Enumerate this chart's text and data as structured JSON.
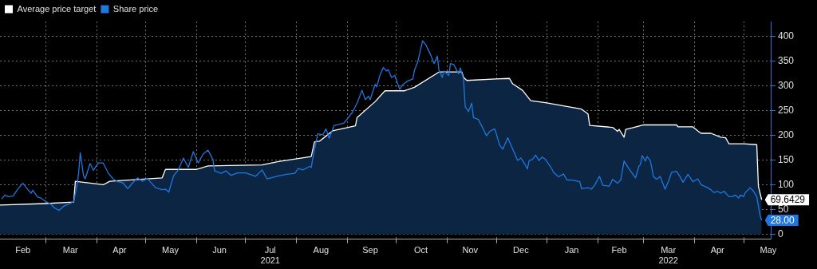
{
  "chart_data": {
    "type": "line",
    "legend": "top left",
    "grid": true,
    "xlim": [
      "2021-02-01",
      "2022-05-18"
    ],
    "xticks": [
      {
        "value": "2021-02-15",
        "label": "Feb"
      },
      {
        "value": "2021-03-01",
        "label": null
      },
      {
        "value": "2021-03-16",
        "label": "Mar"
      },
      {
        "value": "2021-04-01",
        "label": null
      },
      {
        "value": "2021-04-15",
        "label": "Apr"
      },
      {
        "value": "2021-05-01",
        "label": null
      },
      {
        "value": "2021-05-16",
        "label": "May"
      },
      {
        "value": "2021-06-01",
        "label": null
      },
      {
        "value": "2021-06-15",
        "label": "Jun"
      },
      {
        "value": "2021-07-01",
        "label": null
      },
      {
        "value": "2021-07-16",
        "label": "Jul\n2021"
      },
      {
        "value": "2021-08-01",
        "label": null
      },
      {
        "value": "2021-08-16",
        "label": "Aug"
      },
      {
        "value": "2021-09-01",
        "label": null
      },
      {
        "value": "2021-09-15",
        "label": "Sep"
      },
      {
        "value": "2021-10-01",
        "label": null
      },
      {
        "value": "2021-10-16",
        "label": "Oct"
      },
      {
        "value": "2021-11-01",
        "label": null
      },
      {
        "value": "2021-11-15",
        "label": "Nov"
      },
      {
        "value": "2021-12-01",
        "label": null
      },
      {
        "value": "2021-12-16",
        "label": "Dec"
      },
      {
        "value": "2022-01-01",
        "label": null
      },
      {
        "value": "2022-01-16",
        "label": "Jan"
      },
      {
        "value": "2022-02-01",
        "label": null
      },
      {
        "value": "2022-02-14",
        "label": "Feb"
      },
      {
        "value": "2022-03-01",
        "label": null
      },
      {
        "value": "2022-03-16",
        "label": "Mar\n2022"
      },
      {
        "value": "2022-04-01",
        "label": null
      },
      {
        "value": "2022-04-15",
        "label": "Apr"
      },
      {
        "value": "2022-05-01",
        "label": null
      },
      {
        "value": "2022-05-16",
        "label": "May"
      }
    ],
    "ylim": [
      -10,
      430
    ],
    "yticks": [
      0,
      50,
      100,
      150,
      200,
      250,
      300,
      350,
      400
    ],
    "series": [
      {
        "name": "Average price target",
        "type": "area",
        "color": "#ffffff",
        "x": [
          "2021-02-01",
          "2021-03-01",
          "2021-03-18",
          "2021-03-19",
          "2021-04-05",
          "2021-04-09",
          "2021-05-11",
          "2021-05-13",
          "2021-06-01",
          "2021-06-08",
          "2021-07-11",
          "2021-07-21",
          "2021-08-10",
          "2021-08-12",
          "2021-08-15",
          "2021-08-20",
          "2021-08-23",
          "2021-09-06",
          "2021-09-07",
          "2021-09-18",
          "2021-09-24",
          "2021-10-06",
          "2021-10-12",
          "2021-10-27",
          "2021-11-10",
          "2021-11-11",
          "2021-11-13",
          "2021-12-01",
          "2021-12-09",
          "2021-12-11",
          "2021-12-17",
          "2021-12-22",
          "2021-12-31",
          "2022-01-22",
          "2022-01-26",
          "2022-01-27",
          "2022-02-10",
          "2022-02-13",
          "2022-02-14",
          "2022-02-17",
          "2022-02-18",
          "2022-02-22",
          "2022-03-01",
          "2022-03-21",
          "2022-03-22",
          "2022-03-31",
          "2022-04-03",
          "2022-04-05",
          "2022-04-11",
          "2022-04-17",
          "2022-04-20",
          "2022-04-22",
          "2022-05-01",
          "2022-05-09",
          "2022-05-10",
          "2022-05-12"
        ],
        "values": [
          59,
          62,
          65,
          107,
          100,
          107,
          114,
          131,
          131,
          138,
          140,
          147,
          157,
          187,
          188,
          201,
          209,
          219,
          236,
          268,
          290,
          290,
          297,
          328,
          328,
          317,
          311,
          314,
          315,
          304,
          291,
          270,
          266,
          253,
          243,
          220,
          216,
          208,
          212,
          196,
          212,
          215,
          221,
          221,
          217,
          217,
          209,
          204,
          204,
          196,
          195,
          183,
          183,
          181,
          97,
          69.6429
        ],
        "value_labels": [
          null,
          null,
          null,
          null,
          null,
          null,
          null,
          null,
          null,
          null,
          null,
          null,
          null,
          null,
          null,
          null,
          null,
          null,
          null,
          null,
          null,
          null,
          null,
          null,
          null,
          null,
          null,
          null,
          null,
          null,
          null,
          null,
          null,
          null,
          null,
          null,
          null,
          null,
          null,
          null,
          null,
          null,
          null,
          null,
          null,
          null,
          null,
          null,
          null,
          null,
          null,
          null,
          null,
          null,
          null,
          "69.6429"
        ]
      },
      {
        "name": "Share price",
        "type": "line",
        "color": "#1f78e0",
        "x": [
          "2021-02-02",
          "2021-02-04",
          "2021-02-06",
          "2021-02-09",
          "2021-02-12",
          "2021-02-15",
          "2021-02-18",
          "2021-02-20",
          "2021-02-21",
          "2021-02-24",
          "2021-02-26",
          "2021-03-01",
          "2021-03-04",
          "2021-03-06",
          "2021-03-09",
          "2021-03-12",
          "2021-03-15",
          "2021-03-18",
          "2021-03-20",
          "2021-03-21",
          "2021-03-22",
          "2021-03-24",
          "2021-03-25",
          "2021-03-28",
          "2021-03-30",
          "2021-04-02",
          "2021-04-05",
          "2021-04-08",
          "2021-04-11",
          "2021-04-14",
          "2021-04-17",
          "2021-04-20",
          "2021-04-23",
          "2021-04-26",
          "2021-04-29",
          "2021-05-02",
          "2021-05-04",
          "2021-05-07",
          "2021-05-11",
          "2021-05-13",
          "2021-05-15",
          "2021-05-18",
          "2021-05-21",
          "2021-05-24",
          "2021-05-27",
          "2021-05-30",
          "2021-06-02",
          "2021-06-05",
          "2021-06-08",
          "2021-06-11",
          "2021-06-12",
          "2021-06-16",
          "2021-06-19",
          "2021-06-22",
          "2021-06-26",
          "2021-07-01",
          "2021-07-07",
          "2021-07-11",
          "2021-07-14",
          "2021-07-21",
          "2021-07-26",
          "2021-07-31",
          "2021-08-02",
          "2021-08-05",
          "2021-08-09",
          "2021-08-10",
          "2021-08-12",
          "2021-08-14",
          "2021-08-17",
          "2021-08-19",
          "2021-08-21",
          "2021-08-24",
          "2021-08-27",
          "2021-08-30",
          "2021-08-31",
          "2021-09-04",
          "2021-09-07",
          "2021-09-10",
          "2021-09-12",
          "2021-09-14",
          "2021-09-15",
          "2021-09-18",
          "2021-09-19",
          "2021-09-21",
          "2021-09-23",
          "2021-09-25",
          "2021-09-26",
          "2021-09-28",
          "2021-09-30",
          "2021-10-03",
          "2021-10-05",
          "2021-10-08",
          "2021-10-11",
          "2021-10-12",
          "2021-10-14",
          "2021-10-17",
          "2021-10-19",
          "2021-10-22",
          "2021-10-24",
          "2021-10-26",
          "2021-10-27",
          "2021-10-29",
          "2021-10-30",
          "2021-11-02",
          "2021-11-03",
          "2021-11-05",
          "2021-11-08",
          "2021-11-09",
          "2021-11-11",
          "2021-11-12",
          "2021-11-14",
          "2021-11-16",
          "2021-11-17",
          "2021-11-20",
          "2021-11-23",
          "2021-11-25",
          "2021-11-27",
          "2021-11-30",
          "2021-12-01",
          "2021-12-03",
          "2021-12-05",
          "2021-12-08",
          "2021-12-11",
          "2021-12-14",
          "2021-12-16",
          "2021-12-18",
          "2021-12-20",
          "2021-12-21",
          "2021-12-23",
          "2021-12-25",
          "2021-12-27",
          "2021-12-29",
          "2021-12-31",
          "2022-01-03",
          "2022-01-05",
          "2022-01-08",
          "2022-01-11",
          "2022-01-13",
          "2022-01-17",
          "2022-01-21",
          "2022-01-22",
          "2022-01-26",
          "2022-01-28",
          "2022-01-30",
          "2022-02-02",
          "2022-02-04",
          "2022-02-06",
          "2022-02-08",
          "2022-02-10",
          "2022-02-13",
          "2022-02-15",
          "2022-02-17",
          "2022-02-20",
          "2022-02-24",
          "2022-02-26",
          "2022-02-27",
          "2022-02-28",
          "2022-03-02",
          "2022-03-03",
          "2022-03-05",
          "2022-03-07",
          "2022-03-09",
          "2022-03-11",
          "2022-03-14",
          "2022-03-16",
          "2022-03-18",
          "2022-03-21",
          "2022-03-23",
          "2022-03-25",
          "2022-03-28",
          "2022-03-31",
          "2022-04-03",
          "2022-04-05",
          "2022-04-09",
          "2022-04-11",
          "2022-04-13",
          "2022-04-15",
          "2022-04-17",
          "2022-04-19",
          "2022-04-22",
          "2022-04-24",
          "2022-04-26",
          "2022-04-28",
          "2022-04-29",
          "2022-05-01",
          "2022-05-02",
          "2022-05-05",
          "2022-05-07",
          "2022-05-09",
          "2022-05-11",
          "2022-05-12"
        ],
        "values": [
          71,
          79,
          76,
          77,
          92,
          103,
          90,
          83,
          89,
          75,
          73,
          66,
          61,
          54,
          48,
          57,
          61,
          66,
          99,
          123,
          165,
          118,
          112,
          143,
          129,
          144,
          144,
          124,
          112,
          106,
          104,
          92,
          104,
          114,
          107,
          113,
          105,
          94,
          90,
          91,
          85,
          118,
          131,
          154,
          135,
          167,
          144,
          162,
          170,
          151,
          128,
          123,
          128,
          119,
          124,
          124,
          117,
          130,
          112,
          118,
          121,
          123,
          133,
          130,
          137,
          135,
          172,
          203,
          201,
          213,
          194,
          220,
          222,
          225,
          229,
          246,
          265,
          291,
          272,
          279,
          272,
          303,
          298,
          322,
          337,
          330,
          333,
          317,
          321,
          293,
          303,
          310,
          314,
          331,
          348,
          391,
          383,
          362,
          345,
          360,
          331,
          317,
          330,
          321,
          345,
          343,
          324,
          336,
          314,
          258,
          248,
          265,
          236,
          232,
          213,
          199,
          208,
          213,
          203,
          180,
          172,
          195,
          172,
          149,
          154,
          144,
          132,
          149,
          151,
          160,
          149,
          156,
          151,
          137,
          125,
          116,
          122,
          110,
          109,
          106,
          92,
          94,
          91,
          99,
          117,
          99,
          98,
          97,
          111,
          103,
          110,
          148,
          132,
          114,
          137,
          141,
          159,
          148,
          157,
          149,
          116,
          111,
          117,
          91,
          106,
          125,
          127,
          117,
          105,
          121,
          106,
          112,
          100,
          94,
          90,
          84,
          87,
          83,
          87,
          76,
          76,
          79,
          73,
          79,
          76,
          84,
          94,
          87,
          76,
          38,
          28
        ],
        "value_labels": [
          null,
          null,
          null,
          null,
          null,
          null,
          null,
          null,
          null,
          null,
          null,
          null,
          null,
          null,
          null,
          null,
          null,
          null,
          null,
          null,
          null,
          null,
          null,
          null,
          null,
          null,
          null,
          null,
          null,
          null,
          null,
          null,
          null,
          null,
          null,
          null,
          null,
          null,
          null,
          null,
          null,
          null,
          null,
          null,
          null,
          null,
          null,
          null,
          null,
          null,
          null,
          null,
          null,
          null,
          null,
          null,
          null,
          null,
          null,
          null,
          null,
          null,
          null,
          null,
          null,
          null,
          null,
          null,
          null,
          null,
          null,
          null,
          null,
          null,
          null,
          null,
          null,
          null,
          null,
          null,
          null,
          null,
          null,
          null,
          null,
          null,
          null,
          null,
          null,
          null,
          null,
          null,
          null,
          null,
          null,
          null,
          null,
          null,
          null,
          null,
          null,
          null,
          null,
          null,
          null,
          null,
          null,
          null,
          null,
          null,
          null,
          null,
          null,
          null,
          null,
          null,
          null,
          null,
          null,
          null,
          null,
          null,
          null,
          null,
          null,
          null,
          null,
          null,
          null,
          null,
          null,
          null,
          null,
          null,
          null,
          null,
          null,
          null,
          null,
          null,
          null,
          null,
          null,
          null,
          null,
          null,
          null,
          null,
          null,
          null,
          null,
          null,
          null,
          null,
          null,
          null,
          null,
          null,
          null,
          null,
          null,
          null,
          null,
          null,
          null,
          null,
          null,
          null,
          null,
          null,
          null,
          null,
          null,
          null,
          null,
          null,
          null,
          null,
          null,
          null,
          null,
          null,
          null,
          null,
          null,
          null,
          null,
          null,
          null,
          null,
          "28.00"
        ]
      }
    ]
  }
}
